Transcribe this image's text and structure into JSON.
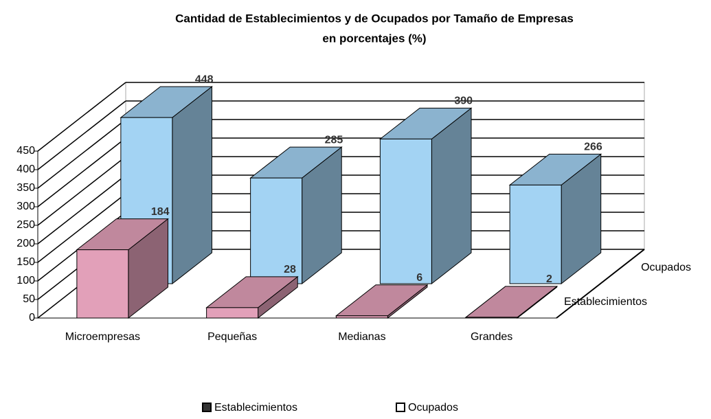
{
  "chart_data": {
    "type": "bar3d",
    "title": "Cantidad de Establecimientos y de Ocupados por Tamaño de Empresas",
    "subtitle": "en porcentajes (%)",
    "categories": [
      "Microempresas",
      "Pequeñas",
      "Medianas",
      "Grandes"
    ],
    "series": [
      {
        "name": "Establecimientos",
        "color": "#e2a0b9",
        "values": [
          184,
          28,
          6,
          2
        ]
      },
      {
        "name": "Ocupados",
        "color": "#a3d3f3",
        "values": [
          448,
          285,
          390,
          266
        ]
      }
    ],
    "ylim": [
      0,
      450
    ],
    "yticks": [
      0,
      50,
      100,
      150,
      200,
      250,
      300,
      350,
      400,
      450
    ],
    "grid": true
  }
}
